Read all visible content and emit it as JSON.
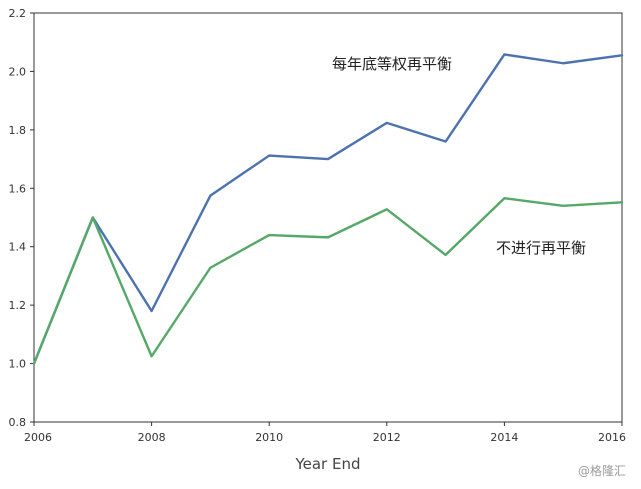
{
  "chart_data": {
    "type": "line",
    "title": "",
    "xlabel": "Year End",
    "ylabel": "",
    "x": [
      2006,
      2007,
      2008,
      2009,
      2010,
      2011,
      2012,
      2013,
      2014,
      2015,
      2016
    ],
    "xlim": [
      2006,
      2016
    ],
    "ylim": [
      0.8,
      2.2
    ],
    "xticks": [
      "2006",
      "2008",
      "2010",
      "2012",
      "2014",
      "2016"
    ],
    "yticks": [
      "0.8",
      "1.0",
      "1.2",
      "1.4",
      "1.6",
      "1.8",
      "2.0",
      "2.2"
    ],
    "grid": false,
    "series": [
      {
        "name": "每年底等权再平衡",
        "color": "#4c72b0",
        "values": [
          1.0,
          1.5,
          1.18,
          1.575,
          1.712,
          1.7,
          1.824,
          1.76,
          2.058,
          2.028,
          2.055
        ]
      },
      {
        "name": "不进行再平衡",
        "color": "#55a868",
        "values": [
          1.0,
          1.5,
          1.025,
          1.328,
          1.44,
          1.432,
          1.528,
          1.372,
          1.566,
          1.54,
          1.552
        ]
      }
    ]
  },
  "watermark": "@格隆汇"
}
